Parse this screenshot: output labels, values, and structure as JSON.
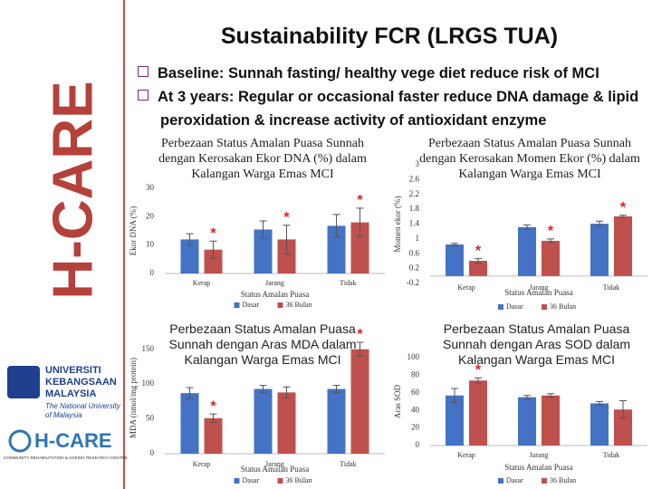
{
  "slide": {
    "title": "Sustainability FCR (LRGS TUA)",
    "bullets": [
      "Baseline: Sunnah fasting/ healthy vege diet reduce risk of  MCI",
      "At 3 years: Regular or occasional faster reduce DNA damage & lipid"
    ],
    "bullet_continuation": "peroxidation & increase activity of antioxidant enzyme"
  },
  "sidebar": {
    "brand": "H-CARE",
    "university": [
      "UNIVERSITI",
      "KEBANGSAAN",
      "MALAYSIA"
    ],
    "university_en": [
      "The National University",
      "of Malaysia"
    ],
    "centre": "H-CARE",
    "centre_full": "COMMUNITY REHABILITATION & AGEING RESEARCH CENTRE"
  },
  "chart_data": [
    {
      "type": "bar",
      "title": "Perbezaan Status Amalan Puasa Sunnah dengan Kerosakan Ekor DNA (%) dalam Kalangan Warga Emas MCI",
      "ylabel": "Ekor DNA (%)",
      "xlabel": "Status Amalan Puasa",
      "categories": [
        "Kerap",
        "Jarang",
        "Tidak"
      ],
      "series": [
        {
          "name": "Dasar",
          "color": "#4472c4",
          "values": [
            12,
            15.5,
            16.8
          ],
          "errors": [
            2,
            3,
            4
          ]
        },
        {
          "name": "36 Bulan",
          "color": "#c0504d",
          "values": [
            8.4,
            12,
            18
          ],
          "errors": [
            3,
            5,
            5
          ],
          "significance": [
            "*",
            "*",
            "*"
          ]
        }
      ],
      "ylim": [
        0,
        30
      ],
      "yticks": [
        0,
        10,
        20,
        30
      ]
    },
    {
      "type": "bar",
      "title": "Perbezaan Status Amalan Puasa Sunnah dengan Kerosakan Momen Ekor (%) dalam Kalangan Warga Emas MCI",
      "ylabel": "Momen ekor (%)",
      "xlabel": "Status Amalan Puasa",
      "categories": [
        "Kerap",
        "Jarang",
        "Tidak"
      ],
      "series": [
        {
          "name": "Dasar",
          "color": "#4472c4",
          "values": [
            0.85,
            1.32,
            1.41
          ],
          "errors": [
            0.03,
            0.06,
            0.07
          ]
        },
        {
          "name": "36 Bulan",
          "color": "#c0504d",
          "values": [
            0.41,
            0.95,
            1.61
          ],
          "errors": [
            0.06,
            0.05,
            0.03
          ],
          "significance": [
            "*",
            "*",
            "*"
          ]
        }
      ],
      "ylim": [
        -0.2,
        3
      ],
      "yticks": [
        -0.2,
        0.2,
        0.6,
        1,
        1.4,
        1.8,
        2.2,
        2.6,
        3
      ]
    },
    {
      "type": "bar",
      "title": "Perbezaan Status Amalan Puasa Sunnah dengan Aras MDA dalam Kalangan Warga Emas MCI",
      "ylabel": "MDA (nmol/mg protein)",
      "xlabel": "Status Amalan Puasa",
      "categories": [
        "Kerap",
        "Jarang",
        "Tidak"
      ],
      "series": [
        {
          "name": "Dasar",
          "color": "#4472c4",
          "values": [
            87,
            93,
            93
          ],
          "errors": [
            8,
            5,
            5
          ]
        },
        {
          "name": "36 Bulan",
          "color": "#c0504d",
          "values": [
            51,
            88,
            150
          ],
          "errors": [
            6,
            8,
            10
          ],
          "significance": [
            "*",
            null,
            "*"
          ]
        }
      ],
      "ylim": [
        0,
        160
      ],
      "yticks": [
        0,
        50,
        100,
        150
      ]
    },
    {
      "type": "bar",
      "title": "Perbezaan Status Amalan Puasa Sunnah dengan Aras SOD dalam Kalangan Warga Emas MCI",
      "ylabel": "Aras SOD",
      "xlabel": "Status Amalan Puasa",
      "categories": [
        "Kerap",
        "Jarang",
        "Tidak"
      ],
      "series": [
        {
          "name": "Dasar",
          "color": "#4472c4",
          "values": [
            57,
            55,
            48
          ],
          "errors": [
            8,
            2,
            2
          ]
        },
        {
          "name": "36 Bulan",
          "color": "#c0504d",
          "values": [
            74,
            57,
            41
          ],
          "errors": [
            3,
            2,
            10
          ],
          "significance": [
            "*",
            null,
            null
          ]
        }
      ],
      "ylim": [
        0,
        100
      ],
      "yticks": [
        0,
        20,
        40,
        60,
        80,
        100
      ]
    }
  ]
}
